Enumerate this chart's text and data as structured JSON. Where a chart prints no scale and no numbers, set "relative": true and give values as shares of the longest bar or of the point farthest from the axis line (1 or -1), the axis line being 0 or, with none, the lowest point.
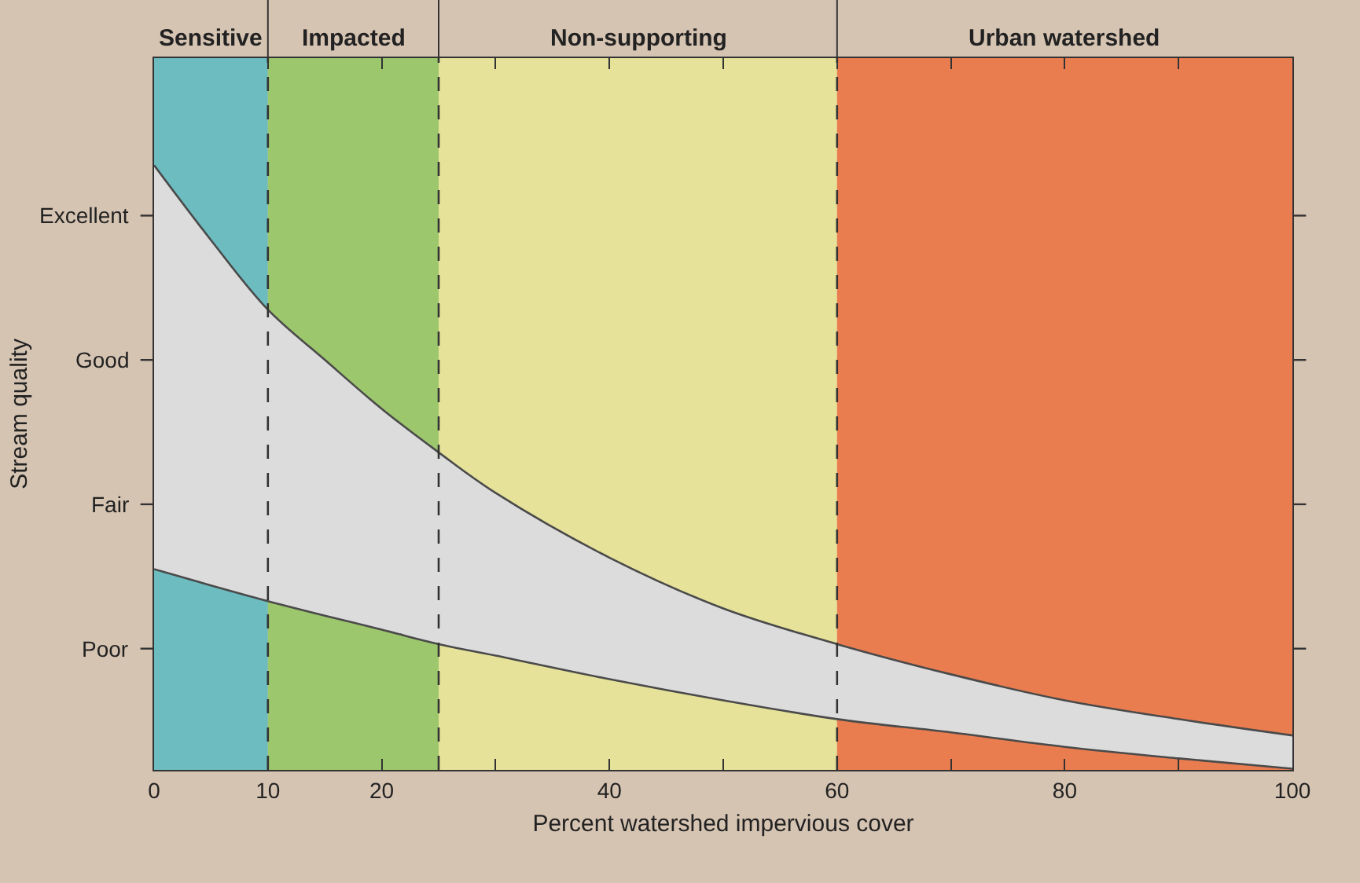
{
  "chart_data": {
    "type": "line",
    "xlabel": "Percent watershed impervious cover",
    "ylabel": "Stream quality",
    "relative": true,
    "x": [
      0,
      5,
      10,
      15,
      20,
      25,
      30,
      40,
      50,
      60,
      70,
      80,
      90,
      100
    ],
    "series": [
      {
        "color": "#4a4a4a",
        "values": [
          0.332,
          0.305,
          0.279,
          0.255,
          0.232,
          0.208,
          0.189,
          0.15,
          0.115,
          0.084,
          0.062,
          0.038,
          0.019,
          0.002
        ]
      },
      {
        "type": "area",
        "color": "#dcdcdc",
        "values": [
          1,
          0.876,
          0.761,
          0.678,
          0.597,
          0.525,
          0.458,
          0.351,
          0.267,
          0.208,
          0.158,
          0.115,
          0.084,
          0.057
        ]
      }
    ],
    "xlim": [
      0,
      100
    ],
    "xticks": [
      0,
      10,
      20,
      {
        "value": 30,
        "label": null
      },
      40,
      {
        "value": 50,
        "label": null
      },
      60,
      {
        "value": 70,
        "label": null
      },
      80,
      {
        "value": 90,
        "label": null
      },
      100
    ],
    "annotations": [
      "Poor",
      "Fair",
      "Good",
      "Excellent"
    ],
    "bands": [
      {
        "axis": "x",
        "from": 0,
        "to": 10,
        "label": "Sensitive",
        "color": "#6cbcc0"
      },
      {
        "axis": "x",
        "from": 10,
        "to": 25,
        "label": "Impacted",
        "color": "#9cc76c"
      },
      {
        "axis": "x",
        "from": 25,
        "to": 60,
        "label": "Non-supporting",
        "color": "#e6e29a"
      },
      {
        "axis": "x",
        "from": 60,
        "to": 100,
        "label": "Urban watershed",
        "color": "#ea7d50"
      }
    ],
    "ref_lines": [
      {
        "axis": "x",
        "value": 10,
        "line_style": "dashed",
        "color": "#333333"
      },
      {
        "axis": "x",
        "value": 25,
        "line_style": "dashed",
        "color": "#333333"
      },
      {
        "axis": "x",
        "value": 60,
        "line_style": "dashed",
        "color": "#333333"
      }
    ]
  }
}
